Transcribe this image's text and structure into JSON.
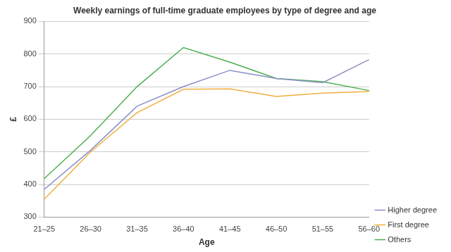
{
  "chart_data": {
    "type": "line",
    "title": "Weekly earnings of full-time graduate employees by type of degree and age",
    "x_label": "Age",
    "y_label": "£",
    "categories": [
      "21–25",
      "26–30",
      "31–35",
      "36–40",
      "41–45",
      "46–50",
      "51–55",
      "56–60"
    ],
    "series": [
      {
        "name": "Higher degree",
        "color": "#8a8fc8",
        "values": [
          385,
          505,
          640,
          700,
          750,
          725,
          712,
          783
        ]
      },
      {
        "name": "First degree",
        "color": "#f0b040",
        "values": [
          355,
          500,
          620,
          692,
          693,
          670,
          680,
          685
        ]
      },
      {
        "name": "Others",
        "color": "#4caf50",
        "values": [
          418,
          550,
          700,
          820,
          775,
          725,
          715,
          688
        ]
      }
    ],
    "ylim": [
      300,
      900
    ],
    "yticks": [
      300,
      400,
      500,
      600,
      700,
      800,
      900
    ],
    "grid": true,
    "legend": "right"
  }
}
